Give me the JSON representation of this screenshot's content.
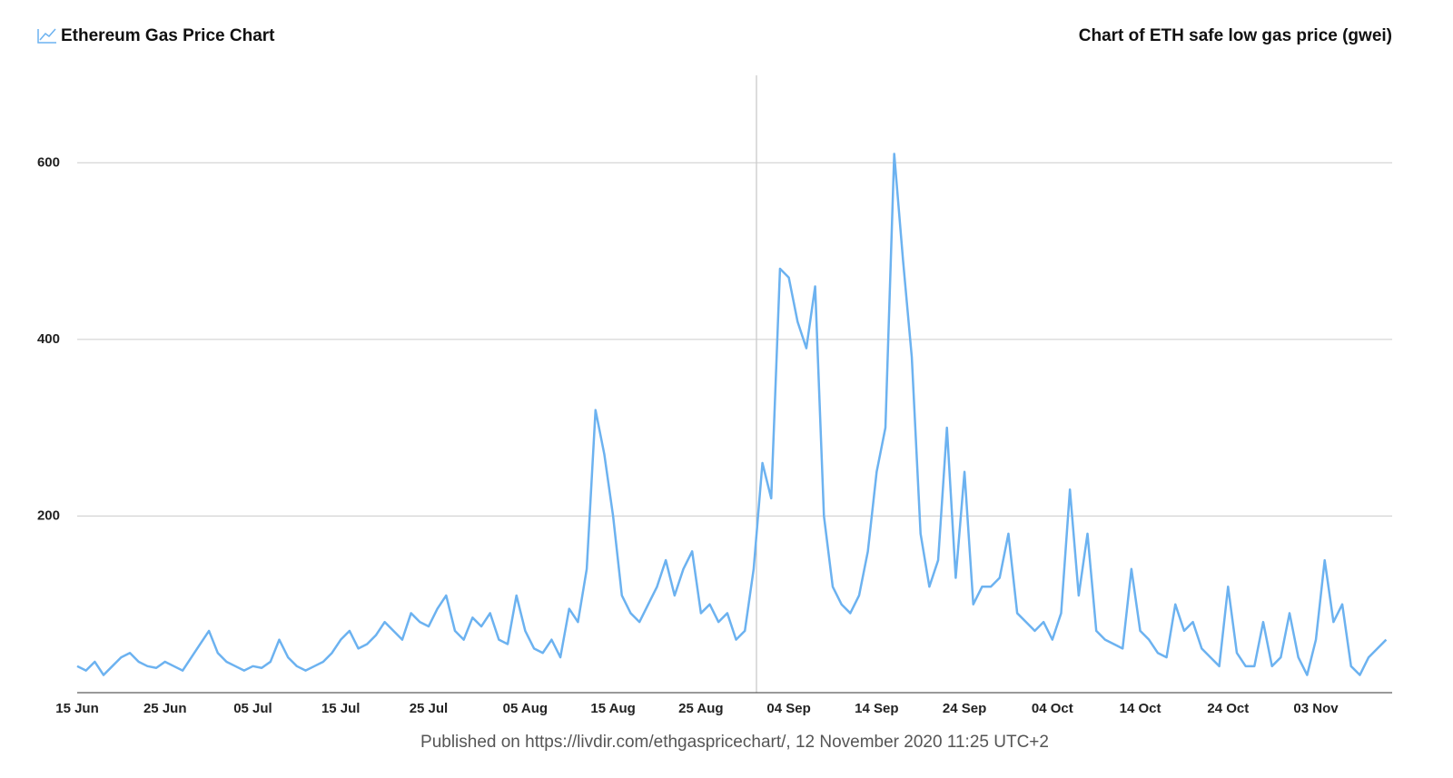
{
  "chart_data": {
    "type": "line",
    "title": "Ethereum Gas Price Chart",
    "subtitle": "Chart of ETH safe low gas price (gwei)",
    "footer": "Published on https://livdir.com/ethgaspricechart/, 12 November 2020 11:25 UTC+2",
    "x": [
      "15 Jun",
      "16 Jun",
      "17 Jun",
      "18 Jun",
      "19 Jun",
      "20 Jun",
      "21 Jun",
      "22 Jun",
      "23 Jun",
      "24 Jun",
      "25 Jun",
      "26 Jun",
      "27 Jun",
      "28 Jun",
      "29 Jun",
      "30 Jun",
      "01 Jul",
      "02 Jul",
      "03 Jul",
      "04 Jul",
      "05 Jul",
      "06 Jul",
      "07 Jul",
      "08 Jul",
      "09 Jul",
      "10 Jul",
      "11 Jul",
      "12 Jul",
      "13 Jul",
      "14 Jul",
      "15 Jul",
      "16 Jul",
      "17 Jul",
      "18 Jul",
      "19 Jul",
      "20 Jul",
      "21 Jul",
      "22 Jul",
      "23 Jul",
      "24 Jul",
      "25 Jul",
      "26 Jul",
      "27 Jul",
      "28 Jul",
      "29 Jul",
      "30 Jul",
      "31 Jul",
      "01 Aug",
      "02 Aug",
      "03 Aug",
      "04 Aug",
      "05 Aug",
      "06 Aug",
      "07 Aug",
      "08 Aug",
      "09 Aug",
      "10 Aug",
      "11 Aug",
      "12 Aug",
      "13 Aug",
      "14 Aug",
      "15 Aug",
      "16 Aug",
      "17 Aug",
      "18 Aug",
      "19 Aug",
      "20 Aug",
      "21 Aug",
      "22 Aug",
      "23 Aug",
      "24 Aug",
      "25 Aug",
      "26 Aug",
      "27 Aug",
      "28 Aug",
      "29 Aug",
      "30 Aug",
      "31 Aug",
      "01 Sep",
      "02 Sep",
      "03 Sep",
      "04 Sep",
      "05 Sep",
      "06 Sep",
      "07 Sep",
      "08 Sep",
      "09 Sep",
      "10 Sep",
      "11 Sep",
      "12 Sep",
      "13 Sep",
      "14 Sep",
      "15 Sep",
      "16 Sep",
      "17 Sep",
      "18 Sep",
      "19 Sep",
      "20 Sep",
      "21 Sep",
      "22 Sep",
      "23 Sep",
      "24 Sep",
      "25 Sep",
      "26 Sep",
      "27 Sep",
      "28 Sep",
      "29 Sep",
      "30 Sep",
      "01 Oct",
      "02 Oct",
      "03 Oct",
      "04 Oct",
      "05 Oct",
      "06 Oct",
      "07 Oct",
      "08 Oct",
      "09 Oct",
      "10 Oct",
      "11 Oct",
      "12 Oct",
      "13 Oct",
      "14 Oct",
      "15 Oct",
      "16 Oct",
      "17 Oct",
      "18 Oct",
      "19 Oct",
      "20 Oct",
      "21 Oct",
      "22 Oct",
      "23 Oct",
      "24 Oct",
      "25 Oct",
      "26 Oct",
      "27 Oct",
      "28 Oct",
      "29 Oct",
      "30 Oct",
      "31 Oct",
      "01 Nov",
      "02 Nov",
      "03 Nov",
      "04 Nov",
      "05 Nov",
      "06 Nov",
      "07 Nov",
      "08 Nov",
      "09 Nov",
      "10 Nov",
      "11 Nov"
    ],
    "series": [
      {
        "name": "safe low gas price",
        "color": "#6cb2f0",
        "values": [
          30,
          25,
          35,
          20,
          30,
          40,
          45,
          35,
          30,
          28,
          35,
          30,
          25,
          40,
          55,
          70,
          45,
          35,
          30,
          25,
          30,
          28,
          35,
          60,
          40,
          30,
          25,
          30,
          35,
          45,
          60,
          70,
          50,
          55,
          65,
          80,
          70,
          60,
          90,
          80,
          75,
          95,
          110,
          70,
          60,
          85,
          75,
          90,
          60,
          55,
          110,
          70,
          50,
          45,
          60,
          40,
          95,
          80,
          140,
          320,
          270,
          200,
          110,
          90,
          80,
          100,
          120,
          150,
          110,
          140,
          160,
          90,
          100,
          80,
          90,
          60,
          70,
          140,
          260,
          220,
          480,
          470,
          420,
          390,
          460,
          200,
          120,
          100,
          90,
          110,
          160,
          250,
          300,
          610,
          490,
          380,
          180,
          120,
          150,
          300,
          130,
          250,
          100,
          120,
          120,
          130,
          180,
          90,
          80,
          70,
          80,
          60,
          90,
          230,
          110,
          180,
          70,
          60,
          55,
          50,
          140,
          70,
          60,
          45,
          40,
          100,
          70,
          80,
          50,
          40,
          30,
          120,
          45,
          30,
          30,
          80,
          30,
          40,
          90,
          40,
          20,
          60,
          150,
          80,
          100,
          30,
          20,
          40,
          50,
          60
        ]
      }
    ],
    "xticks": [
      "15 Jun",
      "25 Jun",
      "05 Jul",
      "15 Jul",
      "25 Jul",
      "05 Aug",
      "15 Aug",
      "25 Aug",
      "04 Sep",
      "14 Sep",
      "24 Sep",
      "04 Oct",
      "14 Oct",
      "24 Oct",
      "03 Nov"
    ],
    "ylim": [
      0,
      700
    ],
    "yticks": [
      200,
      400,
      600
    ],
    "grid": true
  }
}
